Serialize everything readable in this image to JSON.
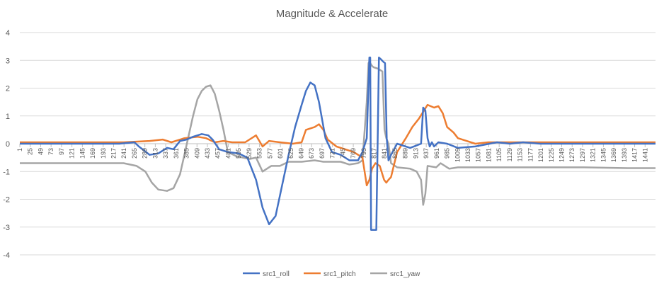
{
  "chart_data": {
    "type": "line",
    "title": "Magnitude & Accelerate",
    "xlabel": "",
    "ylabel": "",
    "ylim": [
      -4,
      4
    ],
    "yticks": [
      -4,
      -3,
      -2,
      -1,
      0,
      1,
      2,
      3,
      4
    ],
    "xlim": [
      1,
      1465
    ],
    "xticks": [
      1,
      25,
      49,
      73,
      97,
      121,
      145,
      169,
      193,
      217,
      241,
      265,
      289,
      313,
      337,
      361,
      385,
      409,
      433,
      457,
      481,
      505,
      529,
      553,
      577,
      601,
      625,
      649,
      673,
      697,
      721,
      745,
      769,
      793,
      817,
      841,
      865,
      889,
      913,
      937,
      961,
      985,
      1009,
      1033,
      1057,
      1081,
      1105,
      1129,
      1153,
      1177,
      1201,
      1225,
      1249,
      1273,
      1297,
      1321,
      1345,
      1369,
      1393,
      1417,
      1441
    ],
    "grid": true,
    "legend": "bottom",
    "colors": {
      "roll": "#4472c4",
      "pitch": "#ed7d31",
      "yaw": "#a5a5a5",
      "grid": "#d9d9d9",
      "axis": "#bfbfbf",
      "text": "#595959"
    },
    "series": [
      {
        "name": "src1_roll",
        "x": [
          1,
          100,
          230,
          265,
          275,
          300,
          320,
          340,
          355,
          370,
          385,
          400,
          420,
          435,
          445,
          460,
          480,
          505,
          525,
          545,
          560,
          575,
          590,
          605,
          620,
          635,
          650,
          660,
          670,
          680,
          690,
          705,
          720,
          740,
          760,
          780,
          790,
          800,
          806,
          808,
          810,
          812,
          818,
          822,
          828,
          832,
          838,
          842,
          846,
          850,
          856,
          870,
          900,
          925,
          930,
          935,
          940,
          945,
          950,
          955,
          965,
          985,
          1010,
          1050,
          1100,
          1130,
          1160,
          1200,
          1300,
          1465
        ],
        "values": [
          0,
          0,
          0,
          0.05,
          -0.1,
          -0.4,
          -0.35,
          -0.15,
          -0.2,
          0.1,
          0.15,
          0.25,
          0.35,
          0.3,
          0.15,
          -0.2,
          -0.3,
          -0.35,
          -0.5,
          -1.3,
          -2.3,
          -2.9,
          -2.6,
          -1.5,
          -0.4,
          0.6,
          1.4,
          1.9,
          2.2,
          2.1,
          1.5,
          0.2,
          -0.3,
          -0.4,
          -0.6,
          -0.6,
          -0.3,
          0.2,
          3.1,
          3.1,
          -3.1,
          -3.1,
          -3.1,
          -3.1,
          3.1,
          3.05,
          2.95,
          2.9,
          0.2,
          -0.6,
          -0.4,
          0,
          -0.15,
          0,
          1.3,
          1.2,
          0.2,
          -0.1,
          0.05,
          -0.1,
          0.05,
          0,
          -0.15,
          -0.1,
          0.05,
          0,
          0.05,
          0,
          0,
          0
        ]
      },
      {
        "name": "src1_pitch",
        "x": [
          1,
          150,
          240,
          300,
          330,
          350,
          380,
          410,
          430,
          450,
          470,
          490,
          520,
          545,
          560,
          575,
          600,
          630,
          650,
          660,
          680,
          690,
          700,
          710,
          730,
          750,
          770,
          790,
          800,
          806,
          812,
          820,
          830,
          840,
          845,
          850,
          856,
          870,
          890,
          905,
          920,
          940,
          955,
          965,
          975,
          985,
          1000,
          1010,
          1030,
          1050,
          1080,
          1100,
          1150,
          1200,
          1300,
          1465
        ],
        "values": [
          0.05,
          0.05,
          0.05,
          0.1,
          0.15,
          0.05,
          0.2,
          0.25,
          0.2,
          0.05,
          0.1,
          0.05,
          0.05,
          0.3,
          -0.1,
          0.1,
          0.05,
          0,
          0.05,
          0.5,
          0.6,
          0.7,
          0.5,
          0.15,
          -0.1,
          -0.2,
          -0.3,
          -0.5,
          -1.5,
          -1.3,
          -0.9,
          -0.7,
          -0.8,
          -1.3,
          -1.4,
          -1.3,
          -1.2,
          -0.3,
          0.2,
          0.6,
          0.9,
          1.4,
          1.3,
          1.35,
          1.1,
          0.6,
          0.4,
          0.2,
          0.1,
          0,
          0.05,
          0.05,
          0.05,
          0.05,
          0.05,
          0.05
        ]
      },
      {
        "name": "src1_yaw",
        "x": [
          1,
          150,
          240,
          270,
          290,
          305,
          320,
          340,
          355,
          370,
          380,
          390,
          400,
          410,
          420,
          430,
          440,
          450,
          460,
          470,
          480,
          500,
          530,
          545,
          560,
          580,
          600,
          620,
          650,
          680,
          700,
          720,
          740,
          760,
          780,
          790,
          800,
          804,
          806,
          808,
          812,
          816,
          826,
          836,
          841,
          845,
          850,
          856,
          870,
          900,
          915,
          925,
          930,
          935,
          940,
          960,
          970,
          990,
          1010,
          1050,
          1100,
          1200,
          1300,
          1400,
          1465
        ],
        "values": [
          -0.7,
          -0.7,
          -0.7,
          -0.8,
          -1,
          -1.4,
          -1.65,
          -1.7,
          -1.6,
          -1.1,
          -0.4,
          0.3,
          1,
          1.6,
          1.9,
          2.05,
          2.1,
          1.8,
          1.2,
          0.5,
          -0.3,
          -0.45,
          -0.55,
          -0.5,
          -1,
          -0.8,
          -0.8,
          -0.65,
          -0.65,
          -0.6,
          -0.65,
          -0.65,
          -0.65,
          -0.75,
          -0.7,
          -0.6,
          1.5,
          2.9,
          2.95,
          2.9,
          2.8,
          2.75,
          2.7,
          2.6,
          0.5,
          0.2,
          0,
          -0.7,
          -0.85,
          -0.9,
          -1,
          -1.3,
          -2.2,
          -1.8,
          -0.8,
          -0.85,
          -0.7,
          -0.9,
          -0.85,
          -0.85,
          -0.85,
          -0.85,
          -0.85,
          -0.88,
          -0.88
        ]
      }
    ]
  }
}
